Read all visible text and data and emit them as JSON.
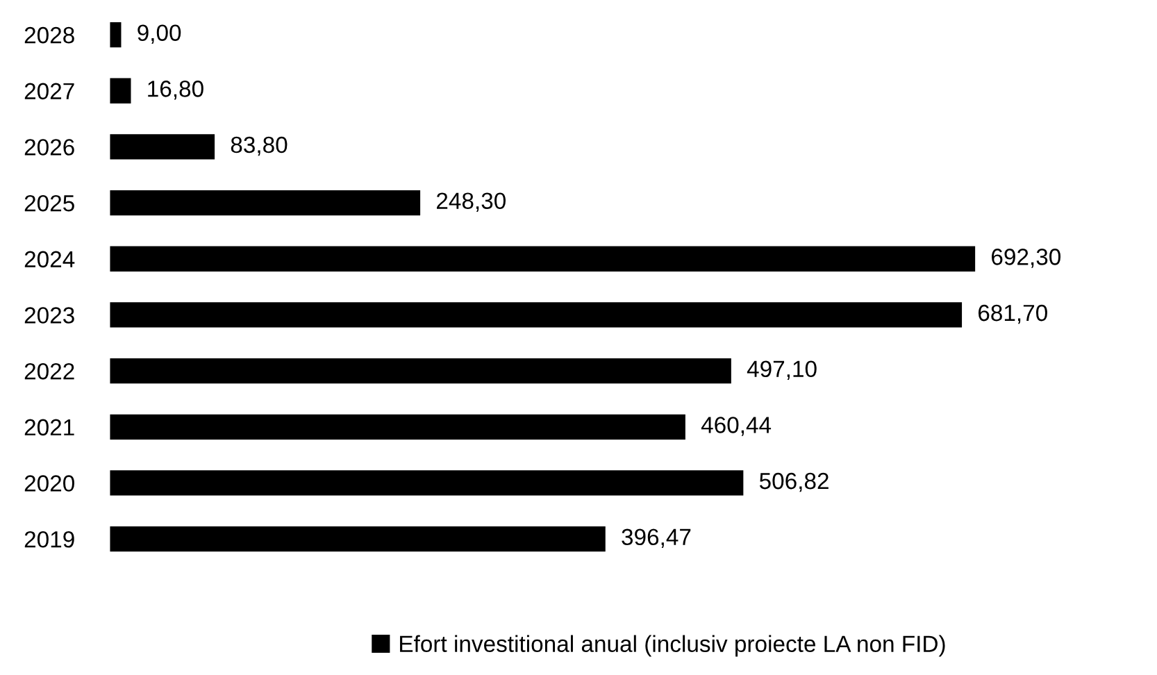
{
  "chart_data": {
    "type": "bar",
    "orientation": "horizontal",
    "categories": [
      "2028",
      "2027",
      "2026",
      "2025",
      "2024",
      "2023",
      "2022",
      "2021",
      "2020",
      "2019"
    ],
    "series": [
      {
        "name": "Efort investitional anual (inclusiv proiecte LA non FID)",
        "color": "#000000",
        "values": [
          9.0,
          16.8,
          83.8,
          248.3,
          692.3,
          681.7,
          497.1,
          460.44,
          506.82,
          396.47
        ],
        "value_labels": [
          "9,00",
          "16,80",
          "83,80",
          "248,30",
          "692,30",
          "681,70",
          "497,10",
          "460,44",
          "506,82",
          "396,47"
        ]
      }
    ],
    "legend": "bottom",
    "grid": false
  }
}
